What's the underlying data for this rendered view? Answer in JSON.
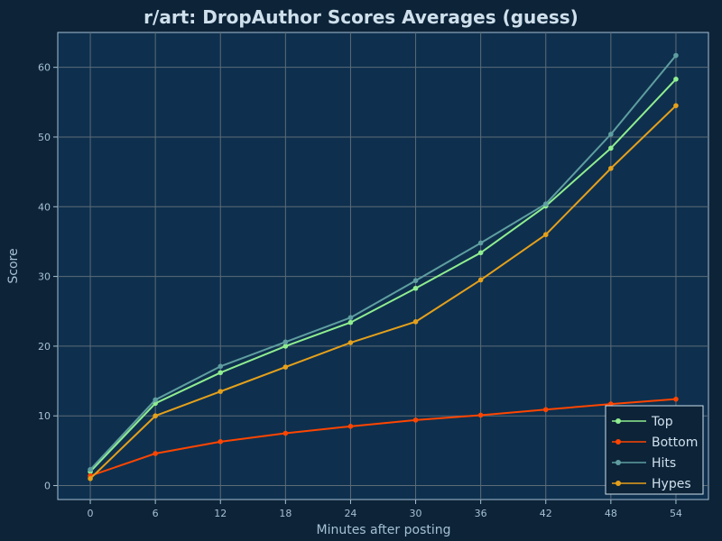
{
  "chart_data": {
    "type": "line",
    "title": "r/art: DropAuthor Scores Averages (guess)",
    "xlabel": "Minutes after posting",
    "ylabel": "Score",
    "x": [
      0,
      6,
      12,
      18,
      24,
      30,
      36,
      42,
      48,
      54
    ],
    "xticks": [
      "0",
      "6",
      "12",
      "18",
      "24",
      "30",
      "36",
      "42",
      "48",
      "54"
    ],
    "yticks": [
      "0",
      "10",
      "20",
      "30",
      "40",
      "50",
      "60"
    ],
    "xlim": [
      -3,
      57
    ],
    "ylim": [
      -2,
      65
    ],
    "grid": true,
    "legend_position": "bottom-right",
    "series": [
      {
        "name": "Top",
        "color": "#90ee90",
        "values": [
          2.0,
          11.8,
          16.2,
          20.0,
          23.4,
          28.3,
          33.4,
          40.1,
          48.4,
          58.3
        ]
      },
      {
        "name": "Bottom",
        "color": "#ff4500",
        "values": [
          1.4,
          4.6,
          6.3,
          7.5,
          8.5,
          9.4,
          10.1,
          10.9,
          11.7,
          12.4
        ]
      },
      {
        "name": "Hits",
        "color": "#5f9ea0",
        "values": [
          2.3,
          12.3,
          17.1,
          20.6,
          24.1,
          29.4,
          34.8,
          40.4,
          50.4,
          61.7
        ]
      },
      {
        "name": "Hypes",
        "color": "#e5a01b",
        "values": [
          1.0,
          10.0,
          13.5,
          17.0,
          20.5,
          23.5,
          29.5,
          36.0,
          45.5,
          54.5
        ]
      }
    ]
  }
}
